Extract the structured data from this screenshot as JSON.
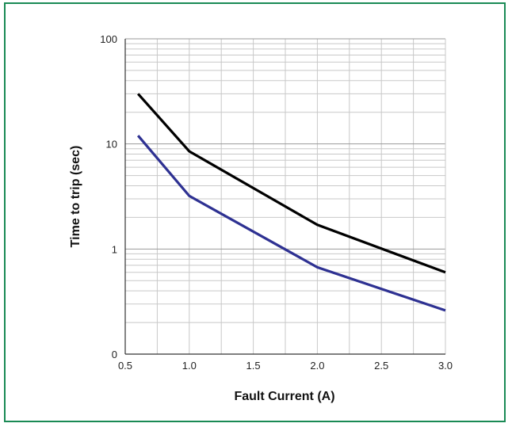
{
  "chart_data": {
    "type": "line",
    "xlabel": "Fault Current (A)",
    "ylabel": "Time to trip (sec)",
    "xlim": [
      0.5,
      3.0
    ],
    "ylim_log": [
      0.1,
      100
    ],
    "y_scale": "log",
    "x_ticks": [
      0.5,
      1.0,
      1.5,
      2.0,
      2.5,
      3.0
    ],
    "x_tick_labels": [
      "0.5",
      "1.0",
      "1.5",
      "2.0",
      "2.5",
      "3.0"
    ],
    "y_ticks": [
      0.1,
      1,
      10,
      100
    ],
    "y_tick_labels": [
      "0",
      "1",
      "10",
      "100"
    ],
    "grid": true,
    "series": [
      {
        "color": "#000000",
        "x": [
          0.6,
          1.0,
          2.0,
          3.0
        ],
        "y": [
          30,
          8.5,
          1.7,
          0.6
        ]
      },
      {
        "color": "#2e3192",
        "x": [
          0.6,
          1.0,
          2.0,
          3.0
        ],
        "y": [
          12,
          3.2,
          0.67,
          0.26
        ]
      }
    ]
  },
  "colors": {
    "frame": "#1a8a55",
    "grid": "#c8c8c8",
    "axis": "#333333"
  }
}
